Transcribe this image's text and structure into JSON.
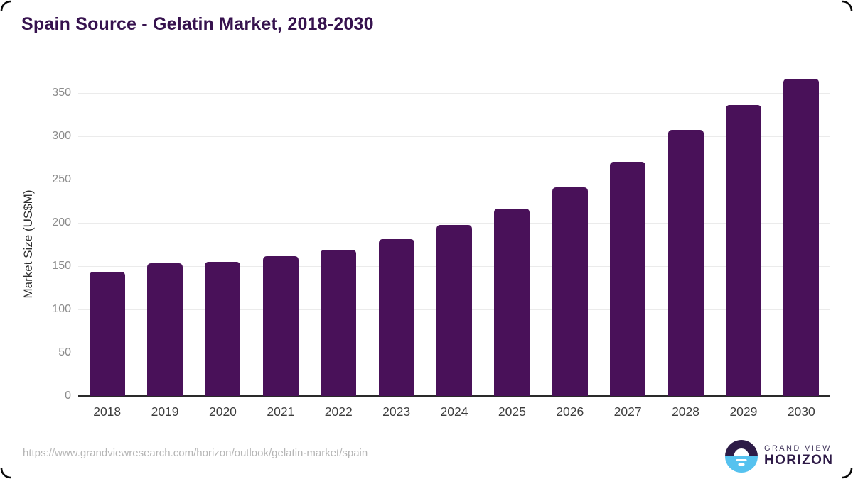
{
  "title": "Spain Source - Gelatin Market, 2018-2030",
  "chart_data": {
    "type": "bar",
    "categories": [
      "2018",
      "2019",
      "2020",
      "2021",
      "2022",
      "2023",
      "2024",
      "2025",
      "2026",
      "2027",
      "2028",
      "2029",
      "2030"
    ],
    "values": [
      143,
      153,
      155,
      161,
      169,
      181,
      197,
      216,
      241,
      270,
      307,
      336,
      366
    ],
    "title": "Spain Source - Gelatin Market, 2018-2030",
    "xlabel": "",
    "ylabel": "Market Size (US$M)",
    "ylim": [
      0,
      370
    ],
    "yticks": [
      0,
      50,
      100,
      150,
      200,
      250,
      300,
      350
    ],
    "grid": "horizontal",
    "legend": "none",
    "bar_color": "#491159"
  },
  "colors": {
    "title": "#36124e",
    "bar": "#491159",
    "gridline": "#ebebeb",
    "axis": "#2a2a2a",
    "y_tick": "#8b8b8b",
    "x_tick": "#3d3d3d",
    "url_text": "#b5b5b5",
    "logo_dark": "#2d1b47",
    "logo_blue": "#56c2ef"
  },
  "footer": {
    "source_url": "https://www.grandviewresearch.com/horizon/outlook/gelatin-market/spain",
    "logo": {
      "line1": "GRAND VIEW",
      "line2": "HORIZON"
    }
  }
}
